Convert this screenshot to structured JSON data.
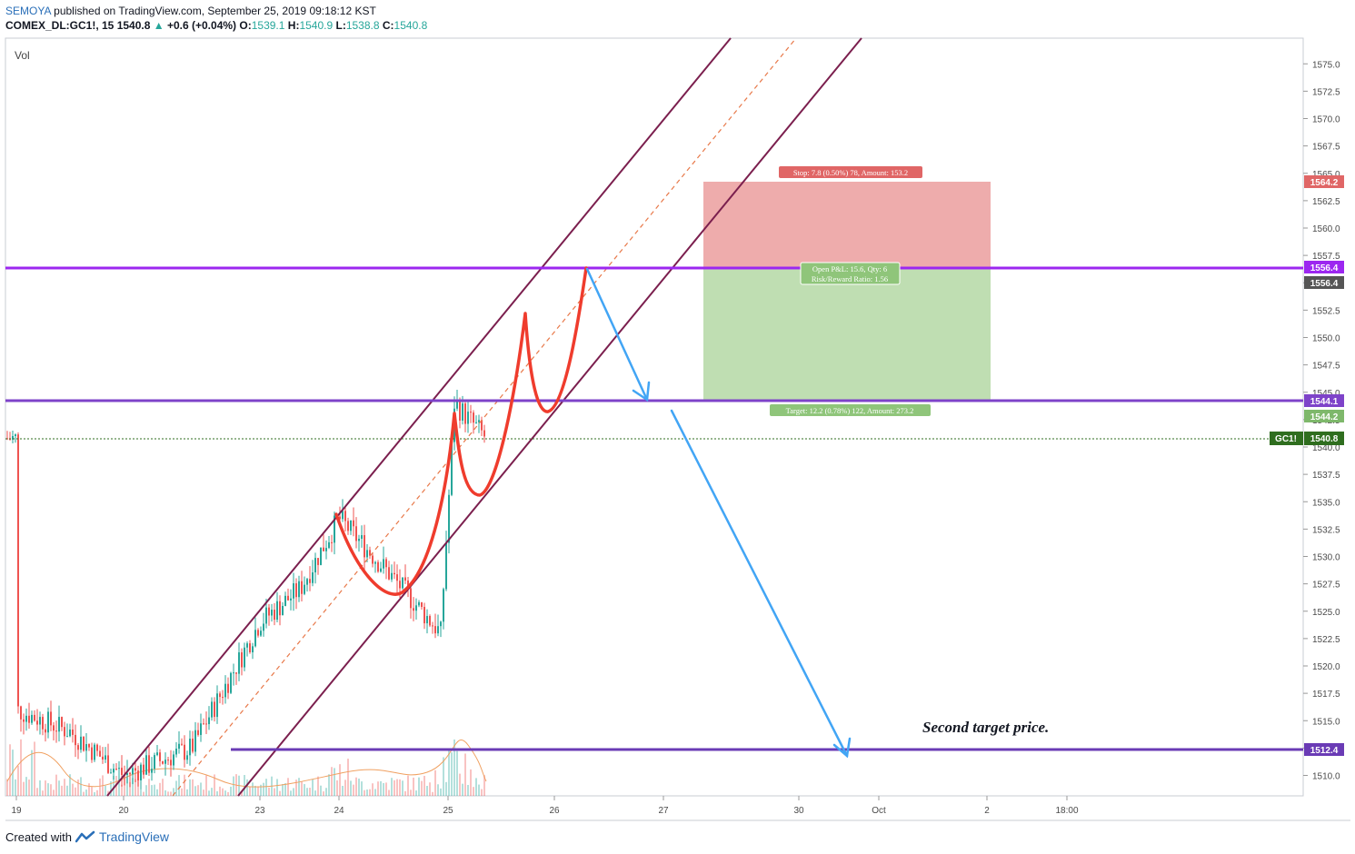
{
  "header": {
    "publisher": "SEMOYA",
    "published_text": "published on TradingView.com, September 25, 2019 09:18:12 KST",
    "symbol": "COMEX_DL:GC1!, 15",
    "last": "1540.8",
    "change_arrow": "▲",
    "change": "+0.6 (+0.04%)",
    "o_label": "O:",
    "o": "1539.1",
    "h_label": "H:",
    "h": "1540.9",
    "l_label": "L:",
    "l": "1538.8",
    "c_label": "C:",
    "c": "1540.8"
  },
  "vol_label": "Vol",
  "footer": {
    "created_with": "Created with",
    "brand": "TradingView"
  },
  "colors": {
    "up": "#26a69a",
    "down": "#ef5350",
    "channel": "#7b1f4e",
    "level_top": "#9c27f0",
    "level_mid": "#7e43c9",
    "level_low": "#6a3bb5",
    "arrow": "#42a5f5",
    "pattern": "#ef3c2d",
    "stop_zone": "#eda8a8",
    "target_zone": "#bcdcae",
    "gc_tag": "#2f6e1f"
  },
  "chart_data": {
    "type": "line",
    "title": "",
    "ylim": [
      1507.5,
      1577.5
    ],
    "y_ticks": [
      "1510.0",
      "1512.5",
      "1515.0",
      "1517.5",
      "1520.0",
      "1522.5",
      "1525.0",
      "1527.5",
      "1530.0",
      "1532.5",
      "1535.0",
      "1537.5",
      "1540.0",
      "1542.5",
      "1545.0",
      "1547.5",
      "1550.0",
      "1552.5",
      "1555.0",
      "1557.5",
      "1560.0",
      "1562.5",
      "1565.0",
      "1567.5",
      "1570.0",
      "1572.5",
      "1575.0"
    ],
    "x_ticks": [
      "19",
      "20",
      "23",
      "24",
      "25",
      "26",
      "27",
      "30",
      "Oct",
      "2",
      "18:00"
    ],
    "price_path": [
      [
        "19",
        1516.0
      ],
      [
        "19.5",
        1514.0
      ],
      [
        "20",
        1510.0
      ],
      [
        "20.5",
        1512.5
      ],
      [
        "23",
        1524.0
      ],
      [
        "23.5",
        1527.0
      ],
      [
        "24",
        1533.5
      ],
      [
        "24.5",
        1528.0
      ],
      [
        "24.9",
        1523.0
      ],
      [
        "25",
        1544.0
      ],
      [
        "25.3",
        1540.8
      ]
    ],
    "levels": [
      {
        "label": "1556.4",
        "value": 1556.4
      },
      {
        "label": "1544.1",
        "value": 1544.1
      },
      {
        "label": "1512.4",
        "value": 1512.4
      }
    ],
    "price_tags": [
      {
        "label": "1564.2",
        "value": 1564.2
      },
      {
        "label": "1556.4",
        "value": 1556.4
      },
      {
        "label": "1544.2",
        "value": 1544.2
      },
      {
        "label": "1540.8",
        "value": 1540.8
      }
    ],
    "last_symbol_tag": "GC1!",
    "position": {
      "entry": 1556.4,
      "stop": 1564.2,
      "target": 1544.2,
      "stop_label": "Stop: 7.8 (0.50%) 78, Amount: 153.2",
      "pnl_label": "Open P&L: 15.6, Qty: 6",
      "rr_label": "Risk/Reward Ratio: 1.56",
      "target_label": "Target: 12.2 (0.78%) 122, Amount: 273.2"
    },
    "annotation": "Second target price."
  }
}
